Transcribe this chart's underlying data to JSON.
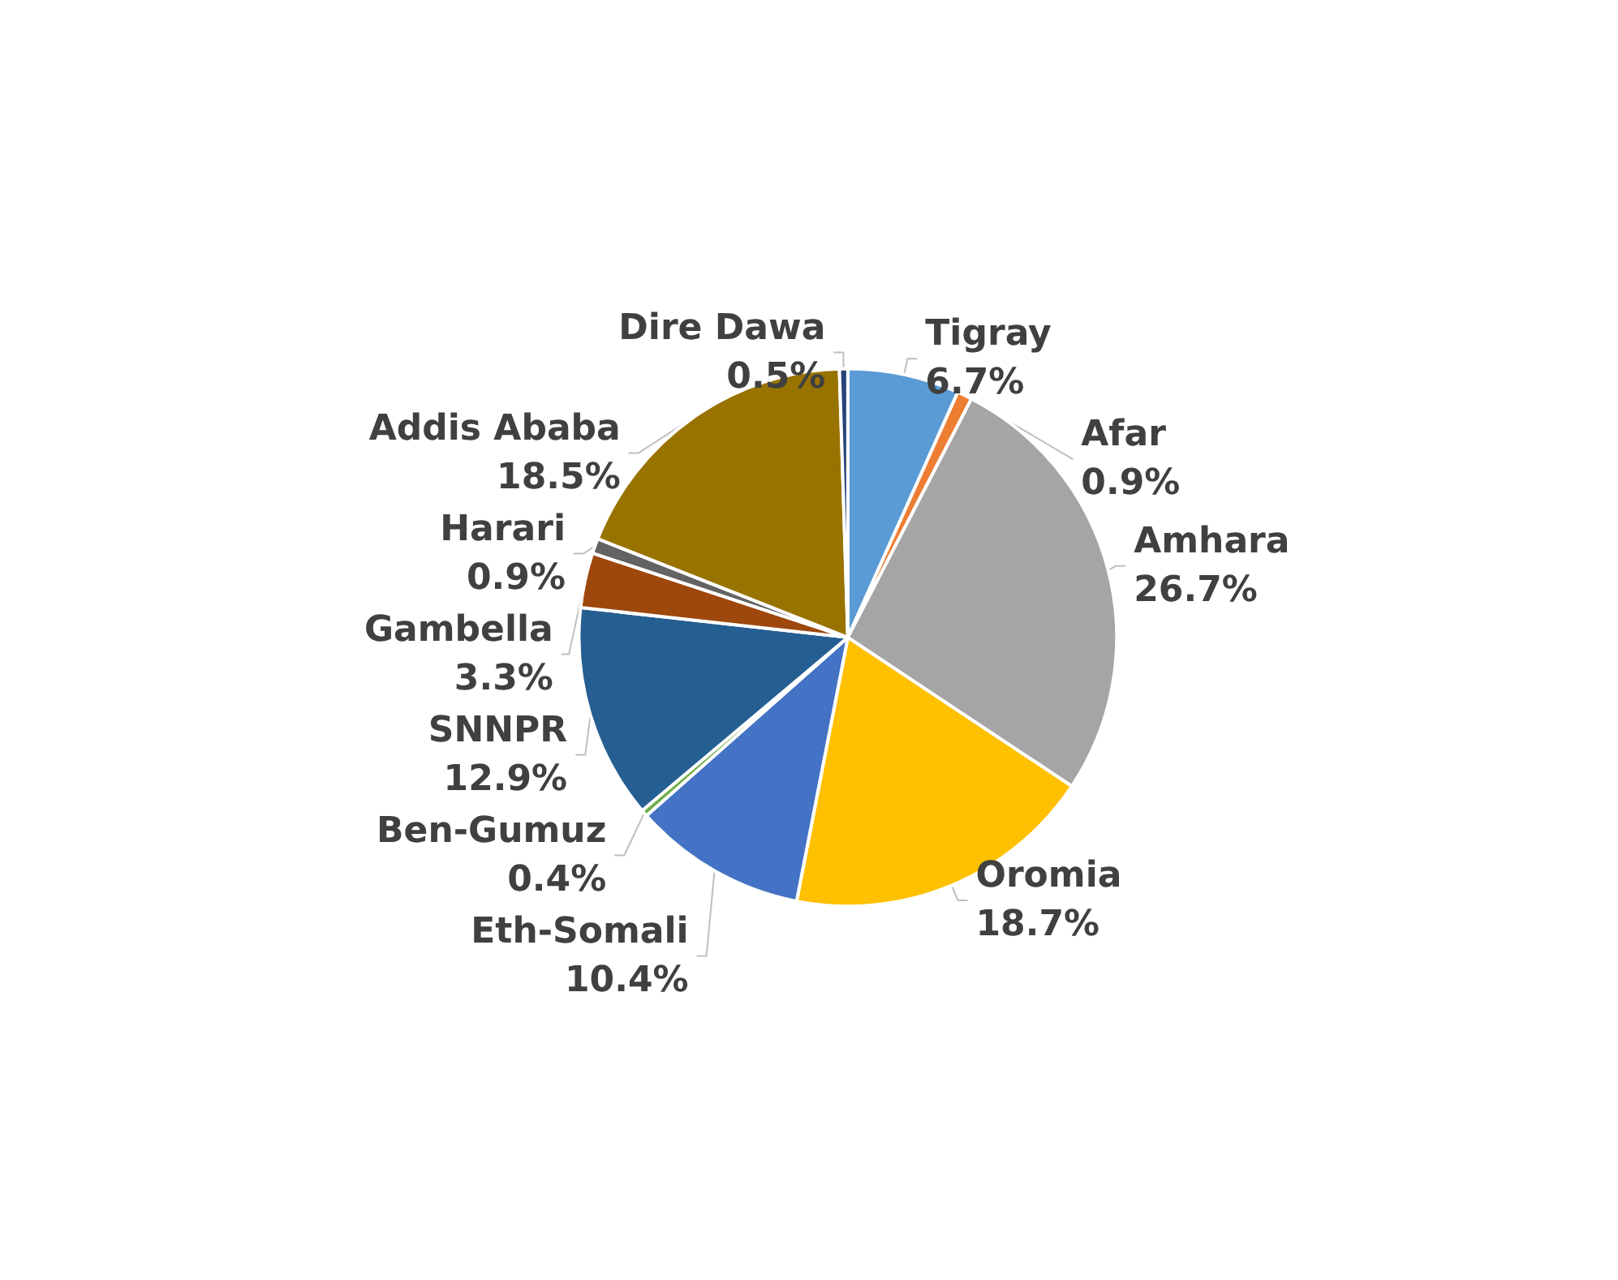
{
  "chart_data": {
    "type": "pie",
    "categories": [
      "Tigray",
      "Afar",
      "Amhara",
      "Oromia",
      "Eth-Somali",
      "Ben-Gumuz",
      "SNNPR",
      "Gambella",
      "Harari",
      "Addis Ababa",
      "Dire Dawa"
    ],
    "values": [
      6.7,
      0.9,
      26.7,
      18.7,
      10.4,
      0.4,
      12.9,
      3.3,
      0.9,
      18.5,
      0.5
    ],
    "value_labels": [
      "6.7%",
      "0.9%",
      "26.7%",
      "18.7%",
      "10.4%",
      "0.4%",
      "12.9%",
      "3.3%",
      "0.9%",
      "18.5%",
      "0.5%"
    ],
    "colors": [
      "#5b9bd5",
      "#ed7d31",
      "#a5a5a5",
      "#ffc000",
      "#4472c4",
      "#70ad47",
      "#255e91",
      "#9e480e",
      "#636363",
      "#997300",
      "#264478"
    ],
    "legend": false
  }
}
